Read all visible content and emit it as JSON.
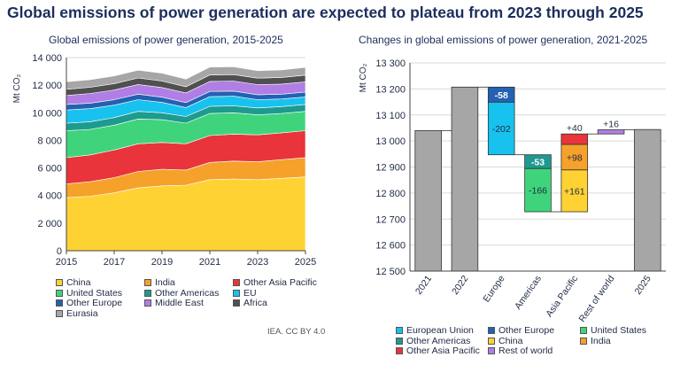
{
  "title": "Global emissions of power generation are expected to plateau from 2023 through 2025",
  "source": "IEA. CC BY 4.0",
  "chart_data": [
    {
      "type": "area",
      "title": "Global emissions of power generation, 2015-2025",
      "ylabel": "Mt CO₂",
      "ylim": [
        0,
        14000
      ],
      "yticks": [
        "0",
        "2 000",
        "4 000",
        "6 000",
        "8 000",
        "10 000",
        "12 000",
        "14 000"
      ],
      "xticks": [
        "2015",
        "2017",
        "2019",
        "2021",
        "2023",
        "2025"
      ],
      "x": [
        2015,
        2016,
        2017,
        2018,
        2019,
        2020,
        2021,
        2022,
        2023,
        2024,
        2025
      ],
      "series": [
        {
          "name": "China",
          "color": "#ffd234",
          "values": [
            3850,
            3950,
            4200,
            4550,
            4700,
            4750,
            5150,
            5200,
            5150,
            5250,
            5350
          ]
        },
        {
          "name": "India",
          "color": "#f5a12a",
          "values": [
            1000,
            1050,
            1100,
            1200,
            1200,
            1100,
            1250,
            1300,
            1300,
            1350,
            1400
          ]
        },
        {
          "name": "Other Asia Pacific",
          "color": "#e8343a",
          "values": [
            1900,
            1950,
            2000,
            2000,
            1950,
            1900,
            1950,
            1950,
            1950,
            1950,
            1950
          ]
        },
        {
          "name": "United States",
          "color": "#3fd47b",
          "values": [
            1950,
            1850,
            1800,
            1800,
            1650,
            1500,
            1600,
            1550,
            1450,
            1400,
            1400
          ]
        },
        {
          "name": "Other Americas",
          "color": "#1e9a8e",
          "values": [
            550,
            550,
            550,
            550,
            500,
            480,
            520,
            500,
            500,
            500,
            500
          ]
        },
        {
          "name": "EU",
          "color": "#18c2ee",
          "values": [
            950,
            950,
            900,
            850,
            750,
            650,
            700,
            700,
            600,
            550,
            550
          ]
        },
        {
          "name": "Other Europe",
          "color": "#2461b2",
          "values": [
            400,
            400,
            400,
            400,
            380,
            360,
            380,
            370,
            360,
            350,
            350
          ]
        },
        {
          "name": "Middle East",
          "color": "#b07ee4",
          "values": [
            650,
            700,
            700,
            700,
            700,
            700,
            720,
            730,
            730,
            730,
            740
          ]
        },
        {
          "name": "Africa",
          "color": "#505050",
          "values": [
            450,
            450,
            460,
            470,
            470,
            450,
            470,
            470,
            470,
            480,
            490
          ]
        },
        {
          "name": "Eurasia",
          "color": "#a6a6a6",
          "values": [
            550,
            550,
            560,
            570,
            570,
            550,
            570,
            560,
            540,
            550,
            560
          ]
        }
      ],
      "legend_position": "bottom"
    },
    {
      "type": "bar",
      "subtype": "waterfall",
      "title": "Changes in global emissions of power generation, 2021-2025",
      "ylabel": "Mt CO₂",
      "ylim": [
        12500,
        13300
      ],
      "yticks": [
        "12 500",
        "12 600",
        "12 700",
        "12 800",
        "12 900",
        "13 000",
        "13 100",
        "13 200",
        "13 300"
      ],
      "categories": [
        "2021",
        "2022",
        "Europe",
        "Americas",
        "Asia Pacific",
        "Rest of world",
        "2025"
      ],
      "totals": [
        {
          "category": "2021",
          "value": 13040
        },
        {
          "category": "2022",
          "value": 13207
        },
        {
          "category": "2025",
          "value": 13044
        }
      ],
      "steps": [
        {
          "category": "Europe",
          "series": "Other Europe",
          "label": "-58",
          "base": 13207,
          "change": -58
        },
        {
          "category": "Europe",
          "series": "European Union",
          "label": "-202",
          "base": 13149,
          "change": -202
        },
        {
          "category": "Americas",
          "series": "Other Americas",
          "label": "-53",
          "base": 12947,
          "change": -53
        },
        {
          "category": "Americas",
          "series": "United States",
          "label": "-166",
          "base": 12894,
          "change": -166
        },
        {
          "category": "Asia Pacific",
          "series": "China",
          "label": "+161",
          "base": 12728,
          "change": 161
        },
        {
          "category": "Asia Pacific",
          "series": "India",
          "label": "+98",
          "base": 12889,
          "change": 98
        },
        {
          "category": "Asia Pacific",
          "series": "Other Asia Pacific",
          "label": "+40",
          "base": 12987,
          "change": 40
        },
        {
          "category": "Rest of world",
          "series": "Rest of world",
          "label": "+16",
          "base": 13027,
          "change": 16
        }
      ],
      "legend": [
        {
          "name": "European Union",
          "color": "#18c2ee"
        },
        {
          "name": "Other Europe",
          "color": "#2461b2"
        },
        {
          "name": "United States",
          "color": "#3fd47b"
        },
        {
          "name": "Other Americas",
          "color": "#1e9a8e"
        },
        {
          "name": "China",
          "color": "#ffd234"
        },
        {
          "name": "India",
          "color": "#f5a12a"
        },
        {
          "name": "Other Asia Pacific",
          "color": "#e8343a"
        },
        {
          "name": "Rest of world",
          "color": "#b07ee4"
        }
      ],
      "total_color": "#a6a6a6",
      "legend_position": "bottom"
    }
  ]
}
